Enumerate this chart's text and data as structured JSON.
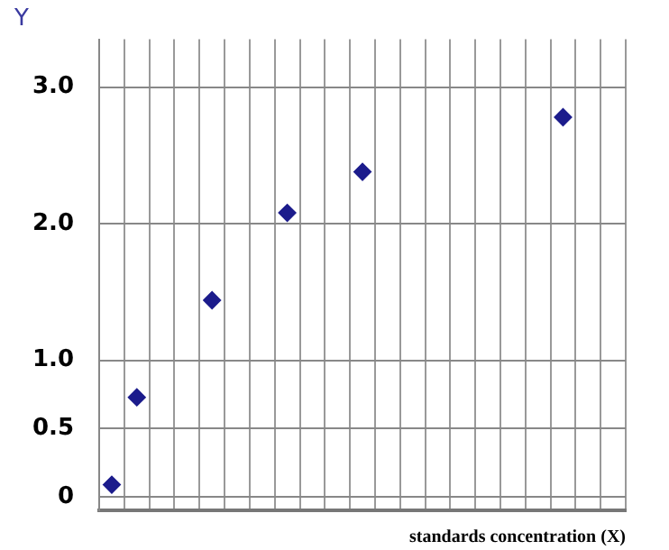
{
  "chart_data": {
    "type": "scatter",
    "ylabel": "Y",
    "xlabel": "standards concentration (X)",
    "categories": [
      null,
      null,
      null,
      null,
      null,
      null,
      null,
      null,
      null,
      null,
      null,
      null,
      null,
      null,
      null,
      null,
      null,
      null,
      null,
      null,
      null
    ],
    "series": [
      {
        "color": "#1c1c8c",
        "values": [
          0.09,
          0.73,
          null,
          null,
          1.44,
          null,
          null,
          2.08,
          null,
          null,
          2.38,
          null,
          null,
          null,
          null,
          null,
          null,
          null,
          2.78,
          null,
          null
        ]
      }
    ],
    "ylim": [
      -0.1,
      3.35
    ],
    "yticks": [
      {
        "value": 0,
        "label": "0"
      },
      {
        "value": 0.5,
        "label": "0.5"
      },
      {
        "value": 1,
        "label": "1.0"
      },
      {
        "value": 2,
        "label": "2.0"
      },
      {
        "value": 3,
        "label": "3.0"
      }
    ],
    "grid": true,
    "marker": "diamond",
    "legend": false,
    "tick_labels": "y"
  }
}
